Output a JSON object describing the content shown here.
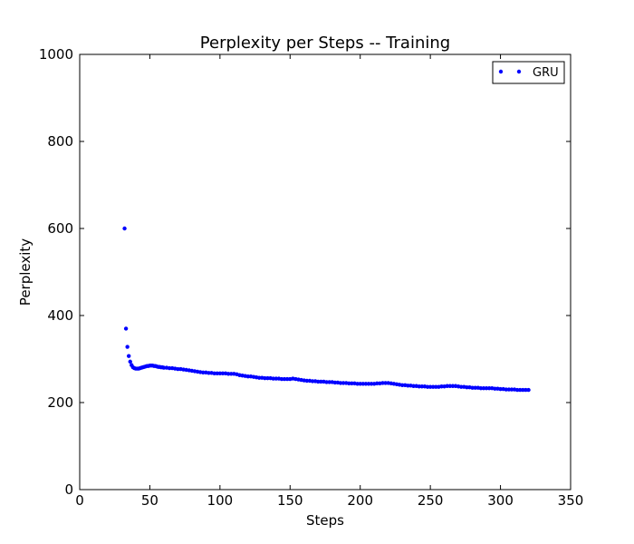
{
  "chart_data": {
    "type": "scatter",
    "title": "Perplexity per Steps -- Training",
    "xlabel": "Steps",
    "ylabel": "Perplexity",
    "xlim": [
      0,
      350
    ],
    "ylim": [
      0,
      1000
    ],
    "xticks": [
      "0",
      "50",
      "100",
      "150",
      "200",
      "250",
      "300",
      "350"
    ],
    "yticks": [
      "0",
      "200",
      "400",
      "600",
      "800",
      "1000"
    ],
    "grid": false,
    "legend_position": "top-right",
    "marker_color": "#0000ff",
    "series": [
      {
        "name": "GRU",
        "points": [
          [
            32,
            600
          ],
          [
            33,
            370
          ],
          [
            34,
            328
          ],
          [
            35,
            307
          ],
          [
            36,
            294
          ],
          [
            37,
            286
          ],
          [
            38,
            281
          ],
          [
            39,
            279
          ],
          [
            40,
            278
          ],
          [
            41,
            278
          ],
          [
            42,
            278
          ],
          [
            43,
            279
          ],
          [
            44,
            280
          ],
          [
            45,
            281
          ],
          [
            46,
            282
          ],
          [
            47,
            283
          ],
          [
            48,
            284
          ],
          [
            49,
            284
          ],
          [
            50,
            285
          ],
          [
            51,
            285
          ],
          [
            52,
            285
          ],
          [
            53,
            284
          ],
          [
            54,
            284
          ],
          [
            55,
            283
          ],
          [
            56,
            282
          ],
          [
            57,
            282
          ],
          [
            58,
            281
          ],
          [
            59,
            281
          ],
          [
            60,
            280
          ],
          [
            62,
            280
          ],
          [
            64,
            279
          ],
          [
            66,
            279
          ],
          [
            68,
            278
          ],
          [
            70,
            277
          ],
          [
            72,
            277
          ],
          [
            74,
            276
          ],
          [
            76,
            275
          ],
          [
            78,
            274
          ],
          [
            80,
            273
          ],
          [
            82,
            272
          ],
          [
            84,
            271
          ],
          [
            86,
            270
          ],
          [
            88,
            269
          ],
          [
            90,
            269
          ],
          [
            92,
            268
          ],
          [
            94,
            268
          ],
          [
            96,
            267
          ],
          [
            98,
            267
          ],
          [
            100,
            267
          ],
          [
            102,
            267
          ],
          [
            104,
            267
          ],
          [
            106,
            266
          ],
          [
            108,
            266
          ],
          [
            110,
            266
          ],
          [
            112,
            265
          ],
          [
            114,
            263
          ],
          [
            116,
            262
          ],
          [
            118,
            261
          ],
          [
            120,
            260
          ],
          [
            122,
            260
          ],
          [
            124,
            259
          ],
          [
            126,
            258
          ],
          [
            128,
            257
          ],
          [
            130,
            257
          ],
          [
            132,
            256
          ],
          [
            134,
            256
          ],
          [
            136,
            256
          ],
          [
            138,
            255
          ],
          [
            140,
            255
          ],
          [
            142,
            255
          ],
          [
            144,
            254
          ],
          [
            146,
            254
          ],
          [
            148,
            254
          ],
          [
            150,
            254
          ],
          [
            152,
            255
          ],
          [
            154,
            254
          ],
          [
            156,
            253
          ],
          [
            158,
            252
          ],
          [
            160,
            251
          ],
          [
            162,
            250
          ],
          [
            164,
            250
          ],
          [
            166,
            249
          ],
          [
            168,
            249
          ],
          [
            170,
            248
          ],
          [
            172,
            248
          ],
          [
            174,
            248
          ],
          [
            176,
            247
          ],
          [
            178,
            247
          ],
          [
            180,
            247
          ],
          [
            182,
            246
          ],
          [
            184,
            246
          ],
          [
            186,
            245
          ],
          [
            188,
            245
          ],
          [
            190,
            245
          ],
          [
            192,
            244
          ],
          [
            194,
            244
          ],
          [
            196,
            244
          ],
          [
            198,
            243
          ],
          [
            200,
            243
          ],
          [
            202,
            243
          ],
          [
            204,
            243
          ],
          [
            206,
            243
          ],
          [
            208,
            243
          ],
          [
            210,
            243
          ],
          [
            212,
            244
          ],
          [
            214,
            244
          ],
          [
            216,
            245
          ],
          [
            218,
            245
          ],
          [
            220,
            245
          ],
          [
            222,
            244
          ],
          [
            224,
            243
          ],
          [
            226,
            242
          ],
          [
            228,
            241
          ],
          [
            230,
            240
          ],
          [
            232,
            240
          ],
          [
            234,
            239
          ],
          [
            236,
            239
          ],
          [
            238,
            238
          ],
          [
            240,
            238
          ],
          [
            242,
            237
          ],
          [
            244,
            237
          ],
          [
            246,
            237
          ],
          [
            248,
            236
          ],
          [
            250,
            236
          ],
          [
            252,
            236
          ],
          [
            254,
            236
          ],
          [
            256,
            236
          ],
          [
            258,
            237
          ],
          [
            260,
            237
          ],
          [
            262,
            238
          ],
          [
            264,
            238
          ],
          [
            266,
            238
          ],
          [
            268,
            238
          ],
          [
            270,
            237
          ],
          [
            272,
            236
          ],
          [
            274,
            236
          ],
          [
            276,
            235
          ],
          [
            278,
            235
          ],
          [
            280,
            234
          ],
          [
            282,
            234
          ],
          [
            284,
            234
          ],
          [
            286,
            233
          ],
          [
            288,
            233
          ],
          [
            290,
            233
          ],
          [
            292,
            233
          ],
          [
            294,
            233
          ],
          [
            296,
            232
          ],
          [
            298,
            232
          ],
          [
            300,
            231
          ],
          [
            302,
            231
          ],
          [
            304,
            230
          ],
          [
            306,
            230
          ],
          [
            308,
            230
          ],
          [
            310,
            230
          ],
          [
            312,
            229
          ],
          [
            314,
            229
          ],
          [
            316,
            229
          ],
          [
            318,
            229
          ],
          [
            320,
            229
          ]
        ]
      }
    ]
  }
}
